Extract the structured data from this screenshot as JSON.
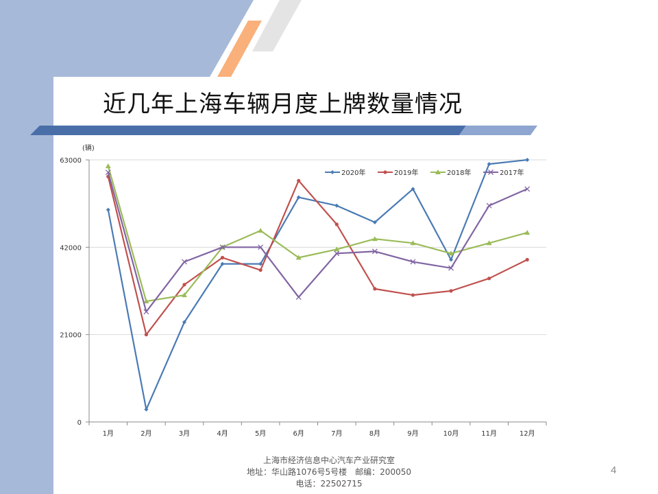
{
  "slide": {
    "title": "近几年上海车辆月度上牌数量情况",
    "footer_line1": "上海市经济信息中心汽车产业研究室",
    "footer_line2": "地址：华山路1076号5号楼　邮编：200050",
    "footer_line3": "电话：22502715",
    "page_number": "4",
    "colors": {
      "left_bar": "#a7b9d9",
      "title_band": "#4a6fa8",
      "title_band_light": "#8ea6d0",
      "stripe_orange": "#f9b07a",
      "stripe_gray": "#e4e4e4"
    }
  },
  "chart_data": {
    "type": "line",
    "unit_label": "(辆)",
    "categories": [
      "1月",
      "2月",
      "3月",
      "4月",
      "5月",
      "6月",
      "7月",
      "8月",
      "9月",
      "10月",
      "11月",
      "12月"
    ],
    "y_ticks": [
      "0",
      "21000",
      "42000",
      "63000"
    ],
    "ylim": [
      0,
      63000
    ],
    "grid": true,
    "legend_position": "top-right",
    "series": [
      {
        "name": "2020年",
        "color": "#4a7ab4",
        "marker": "diamond",
        "values": [
          51000,
          3000,
          24000,
          38000,
          38000,
          54000,
          52000,
          48000,
          56000,
          39000,
          62000,
          63000
        ]
      },
      {
        "name": "2019年",
        "color": "#c0504d",
        "marker": "circle",
        "values": [
          59000,
          21000,
          33000,
          39500,
          36500,
          58000,
          47500,
          32000,
          30500,
          31500,
          34500,
          39000
        ]
      },
      {
        "name": "2018年",
        "color": "#9bbb59",
        "marker": "triangle",
        "values": [
          61500,
          29000,
          30500,
          42000,
          46000,
          39500,
          41500,
          44000,
          43000,
          40500,
          43000,
          45500
        ]
      },
      {
        "name": "2017年",
        "color": "#8064a2",
        "marker": "x",
        "values": [
          60000,
          26500,
          38500,
          42000,
          42000,
          30000,
          40500,
          41000,
          38500,
          37000,
          52000,
          56000
        ]
      }
    ]
  }
}
